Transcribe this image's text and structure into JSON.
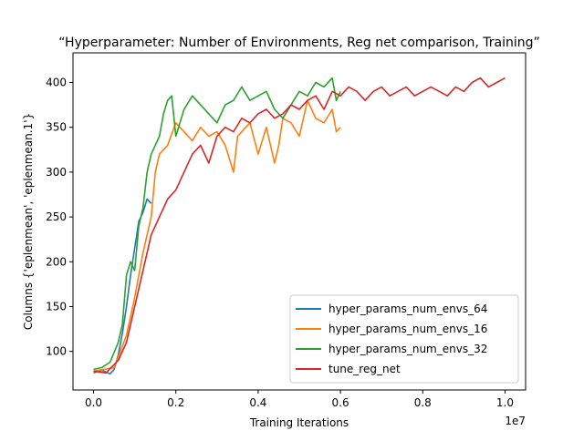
{
  "chart_data": {
    "type": "line",
    "title": "“Hyperparameter: Number of Environments, Reg net comparison, Training”",
    "xlabel": "Training Iterations",
    "ylabel": "Columns {'eplenmean', 'eplenmean.1'}",
    "x_offset_label": "1e7",
    "xlim": [
      -0.05,
      1.05
    ],
    "ylim": [
      57,
      433
    ],
    "x_ticks": [
      0.0,
      0.2,
      0.4,
      0.6,
      0.8,
      1.0
    ],
    "x_tick_labels": [
      "0.0",
      "0.2",
      "0.4",
      "0.6",
      "0.8",
      "1.0"
    ],
    "y_ticks": [
      100,
      150,
      200,
      250,
      300,
      350,
      400
    ],
    "y_tick_labels": [
      "100",
      "150",
      "200",
      "250",
      "300",
      "350",
      "400"
    ],
    "grid": false,
    "legend_position": "lower-right",
    "series": [
      {
        "name": "hyper_params_num_envs_64",
        "color": "#1f77b4",
        "x": [
          0.0,
          0.02,
          0.04,
          0.05,
          0.06,
          0.07,
          0.08,
          0.09,
          0.1,
          0.11,
          0.12,
          0.13,
          0.14
        ],
        "y": [
          76,
          79,
          75,
          80,
          96,
          120,
          150,
          185,
          215,
          245,
          255,
          270,
          265
        ]
      },
      {
        "name": "hyper_params_num_envs_16",
        "color": "#ff7f0e",
        "x": [
          0.0,
          0.05,
          0.08,
          0.1,
          0.12,
          0.14,
          0.15,
          0.16,
          0.18,
          0.2,
          0.22,
          0.24,
          0.26,
          0.28,
          0.3,
          0.32,
          0.34,
          0.35,
          0.36,
          0.38,
          0.4,
          0.42,
          0.44,
          0.45,
          0.46,
          0.48,
          0.5,
          0.52,
          0.54,
          0.56,
          0.58,
          0.59,
          0.6
        ],
        "y": [
          78,
          82,
          118,
          160,
          210,
          250,
          300,
          320,
          330,
          355,
          345,
          335,
          350,
          340,
          345,
          330,
          300,
          340,
          345,
          355,
          320,
          350,
          310,
          330,
          360,
          355,
          340,
          380,
          360,
          355,
          370,
          345,
          350
        ]
      },
      {
        "name": "hyper_params_num_envs_32",
        "color": "#2ca02c",
        "x": [
          0.0,
          0.02,
          0.04,
          0.06,
          0.07,
          0.08,
          0.09,
          0.1,
          0.11,
          0.12,
          0.13,
          0.14,
          0.15,
          0.16,
          0.17,
          0.18,
          0.19,
          0.2,
          0.22,
          0.24,
          0.26,
          0.28,
          0.3,
          0.32,
          0.34,
          0.36,
          0.38,
          0.4,
          0.42,
          0.44,
          0.46,
          0.48,
          0.5,
          0.52,
          0.54,
          0.56,
          0.58,
          0.59,
          0.6
        ],
        "y": [
          80,
          82,
          88,
          110,
          130,
          185,
          200,
          190,
          240,
          260,
          300,
          320,
          330,
          340,
          365,
          380,
          385,
          340,
          370,
          385,
          375,
          365,
          355,
          375,
          380,
          395,
          380,
          385,
          390,
          370,
          360,
          375,
          390,
          385,
          400,
          395,
          405,
          380,
          390
        ]
      },
      {
        "name": "tune_reg_net",
        "color": "#d62728",
        "x": [
          0.0,
          0.03,
          0.06,
          0.08,
          0.1,
          0.12,
          0.14,
          0.16,
          0.18,
          0.2,
          0.22,
          0.24,
          0.26,
          0.28,
          0.3,
          0.32,
          0.34,
          0.36,
          0.38,
          0.4,
          0.42,
          0.44,
          0.46,
          0.48,
          0.5,
          0.52,
          0.54,
          0.56,
          0.58,
          0.6,
          0.62,
          0.64,
          0.66,
          0.68,
          0.7,
          0.72,
          0.74,
          0.76,
          0.78,
          0.8,
          0.82,
          0.84,
          0.86,
          0.88,
          0.9,
          0.92,
          0.94,
          0.96,
          0.98,
          1.0
        ],
        "y": [
          78,
          76,
          90,
          110,
          150,
          190,
          230,
          250,
          270,
          280,
          300,
          320,
          330,
          310,
          340,
          350,
          345,
          360,
          355,
          365,
          370,
          360,
          365,
          375,
          370,
          380,
          385,
          370,
          390,
          385,
          395,
          390,
          380,
          390,
          395,
          385,
          390,
          395,
          385,
          390,
          395,
          390,
          385,
          395,
          390,
          400,
          405,
          395,
          400,
          405
        ]
      }
    ]
  }
}
